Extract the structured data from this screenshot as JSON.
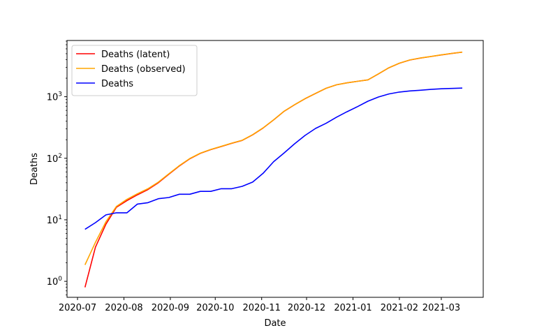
{
  "chart_data": {
    "type": "line",
    "title": "",
    "xlabel": "Date",
    "ylabel": "Deaths",
    "yscale": "log",
    "xlim": [
      "2020-06-24",
      "2021-03-29"
    ],
    "ylim": [
      0.55,
      8200
    ],
    "grid": false,
    "legend_placement": "top-left",
    "x_ticks": [
      "2020-07",
      "2020-08",
      "2020-09",
      "2020-10",
      "2020-11",
      "2020-12",
      "2021-01",
      "2021-02",
      "2021-03"
    ],
    "y_ticks": [
      {
        "value": 1,
        "base": "10",
        "exp": "0"
      },
      {
        "value": 10,
        "base": "10",
        "exp": "1"
      },
      {
        "value": 100,
        "base": "10",
        "exp": "2"
      },
      {
        "value": 1000,
        "base": "10",
        "exp": "3"
      }
    ],
    "series": [
      {
        "name": "Deaths (latent)",
        "color": "#ff0000",
        "points": [
          [
            "2020-07-06",
            0.8
          ],
          [
            "2020-07-13",
            3.6
          ],
          [
            "2020-07-20",
            8.5
          ],
          [
            "2020-07-27",
            16
          ],
          [
            "2020-08-03",
            20.5
          ],
          [
            "2020-08-10",
            25.5
          ],
          [
            "2020-08-17",
            31
          ],
          [
            "2020-08-24",
            40
          ],
          [
            "2020-08-31",
            55
          ],
          [
            "2020-09-07",
            75
          ],
          [
            "2020-09-14",
            98
          ],
          [
            "2020-09-21",
            120
          ],
          [
            "2020-09-28",
            138
          ],
          [
            "2020-10-05",
            155
          ],
          [
            "2020-10-12",
            175
          ],
          [
            "2020-10-19",
            195
          ],
          [
            "2020-10-26",
            240
          ],
          [
            "2020-11-02",
            310
          ],
          [
            "2020-11-09",
            420
          ],
          [
            "2020-11-16",
            580
          ],
          [
            "2020-11-23",
            740
          ],
          [
            "2020-11-30",
            930
          ],
          [
            "2020-12-07",
            1130
          ],
          [
            "2020-12-14",
            1370
          ],
          [
            "2020-12-21",
            1560
          ],
          [
            "2020-12-28",
            1680
          ],
          [
            "2021-01-04",
            1780
          ],
          [
            "2021-01-11",
            1880
          ],
          [
            "2021-01-18",
            2350
          ],
          [
            "2021-01-25",
            2950
          ],
          [
            "2021-02-01",
            3500
          ],
          [
            "2021-02-08",
            3950
          ],
          [
            "2021-02-15",
            4250
          ],
          [
            "2021-02-22",
            4500
          ],
          [
            "2021-03-01",
            4780
          ],
          [
            "2021-03-08",
            5050
          ],
          [
            "2021-03-15",
            5300
          ]
        ]
      },
      {
        "name": "Deaths (observed)",
        "color": "#ffa500",
        "points": [
          [
            "2020-07-06",
            1.85
          ],
          [
            "2020-07-13",
            4.3
          ],
          [
            "2020-07-20",
            9.3
          ],
          [
            "2020-07-27",
            16.5
          ],
          [
            "2020-08-03",
            21.5
          ],
          [
            "2020-08-10",
            26.5
          ],
          [
            "2020-08-17",
            32
          ],
          [
            "2020-08-24",
            41
          ],
          [
            "2020-08-31",
            56
          ],
          [
            "2020-09-07",
            76
          ],
          [
            "2020-09-14",
            99
          ],
          [
            "2020-09-21",
            121
          ],
          [
            "2020-09-28",
            139
          ],
          [
            "2020-10-05",
            156
          ],
          [
            "2020-10-12",
            176
          ],
          [
            "2020-10-19",
            196
          ],
          [
            "2020-10-26",
            242
          ],
          [
            "2020-11-02",
            312
          ],
          [
            "2020-11-09",
            422
          ],
          [
            "2020-11-16",
            582
          ],
          [
            "2020-11-23",
            742
          ],
          [
            "2020-11-30",
            932
          ],
          [
            "2020-12-07",
            1132
          ],
          [
            "2020-12-14",
            1372
          ],
          [
            "2020-12-21",
            1562
          ],
          [
            "2020-12-28",
            1682
          ],
          [
            "2021-01-04",
            1782
          ],
          [
            "2021-01-11",
            1882
          ],
          [
            "2021-01-18",
            2355
          ],
          [
            "2021-01-25",
            2955
          ],
          [
            "2021-02-01",
            3505
          ],
          [
            "2021-02-08",
            3955
          ],
          [
            "2021-02-15",
            4255
          ],
          [
            "2021-02-22",
            4505
          ],
          [
            "2021-03-01",
            4785
          ],
          [
            "2021-03-08",
            5055
          ],
          [
            "2021-03-15",
            5305
          ]
        ]
      },
      {
        "name": "Deaths",
        "color": "#0000ff",
        "points": [
          [
            "2020-07-06",
            7
          ],
          [
            "2020-07-13",
            9
          ],
          [
            "2020-07-20",
            12
          ],
          [
            "2020-07-27",
            13
          ],
          [
            "2020-08-03",
            13
          ],
          [
            "2020-08-10",
            18
          ],
          [
            "2020-08-17",
            19
          ],
          [
            "2020-08-24",
            22
          ],
          [
            "2020-08-31",
            23
          ],
          [
            "2020-09-07",
            26
          ],
          [
            "2020-09-14",
            26
          ],
          [
            "2020-09-21",
            29
          ],
          [
            "2020-09-28",
            29
          ],
          [
            "2020-10-05",
            32
          ],
          [
            "2020-10-12",
            32
          ],
          [
            "2020-10-19",
            35
          ],
          [
            "2020-10-26",
            41
          ],
          [
            "2020-11-02",
            57
          ],
          [
            "2020-11-09",
            88
          ],
          [
            "2020-11-16",
            122
          ],
          [
            "2020-11-23",
            172
          ],
          [
            "2020-11-30",
            235
          ],
          [
            "2020-12-07",
            305
          ],
          [
            "2020-12-14",
            370
          ],
          [
            "2020-12-21",
            465
          ],
          [
            "2020-12-28",
            570
          ],
          [
            "2021-01-04",
            690
          ],
          [
            "2021-01-11",
            845
          ],
          [
            "2021-01-18",
            990
          ],
          [
            "2021-01-25",
            1110
          ],
          [
            "2021-02-01",
            1190
          ],
          [
            "2021-02-08",
            1240
          ],
          [
            "2021-02-15",
            1275
          ],
          [
            "2021-02-22",
            1315
          ],
          [
            "2021-03-01",
            1345
          ],
          [
            "2021-03-08",
            1365
          ],
          [
            "2021-03-15",
            1380
          ]
        ]
      }
    ]
  }
}
